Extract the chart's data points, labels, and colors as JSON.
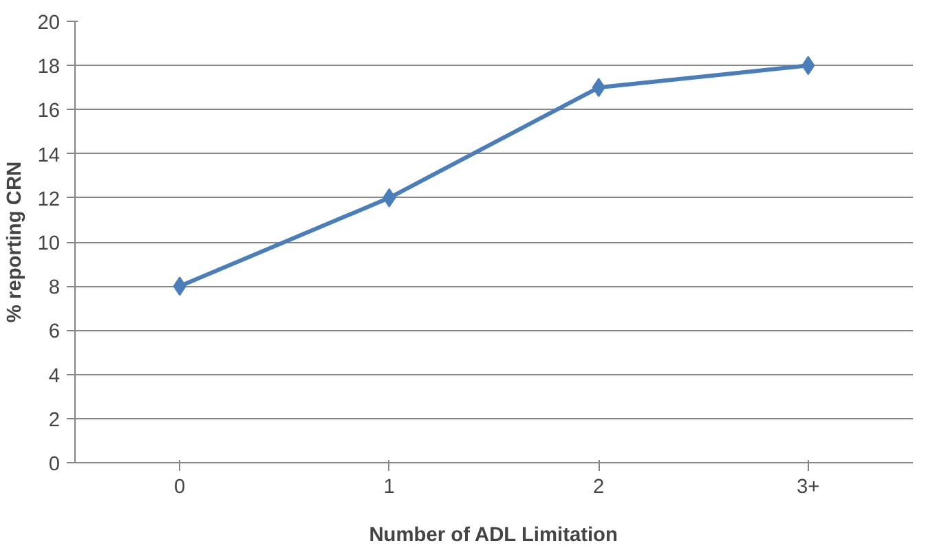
{
  "chart_data": {
    "type": "line",
    "xlabel": "Number of ADL Limitation",
    "ylabel": "% reporting CRN",
    "categories": [
      "0",
      "1",
      "2",
      "3+"
    ],
    "series": [
      {
        "color": "#4a7ebb",
        "values": [
          8,
          12,
          17,
          18
        ]
      }
    ],
    "ylim": [
      0,
      20
    ],
    "yticks": [
      0,
      2,
      4,
      6,
      8,
      10,
      12,
      14,
      16,
      18,
      20
    ],
    "grid": "y",
    "marker": "diamond",
    "line_style": "solid"
  }
}
